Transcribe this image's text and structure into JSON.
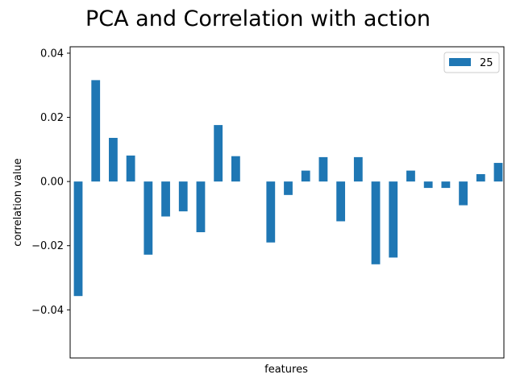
{
  "chart_data": {
    "type": "bar",
    "title": "PCA and Correlation with action",
    "xlabel": "features",
    "ylabel": "correlation value",
    "ylim": [
      -0.055,
      0.042
    ],
    "yticks": [
      0.04,
      0.02,
      0.0,
      -0.02,
      -0.04
    ],
    "ytick_labels": [
      "0.04",
      "0.02",
      "0.00",
      "−0.02",
      "−0.04"
    ],
    "xticks_visible": false,
    "grid": false,
    "legend": {
      "position": "top-right"
    },
    "series": [
      {
        "name": "25",
        "color": "#1f77b4",
        "values": [
          -0.0357,
          0.0316,
          0.0136,
          0.0081,
          -0.0228,
          -0.0109,
          -0.0093,
          -0.0158,
          0.0176,
          0.0079,
          0.0,
          -0.019,
          -0.0042,
          0.0034,
          0.0076,
          -0.0124,
          0.0076,
          -0.0258,
          -0.0237,
          0.0034,
          -0.002,
          -0.002,
          -0.0074,
          0.0023,
          0.0058
        ]
      }
    ]
  }
}
